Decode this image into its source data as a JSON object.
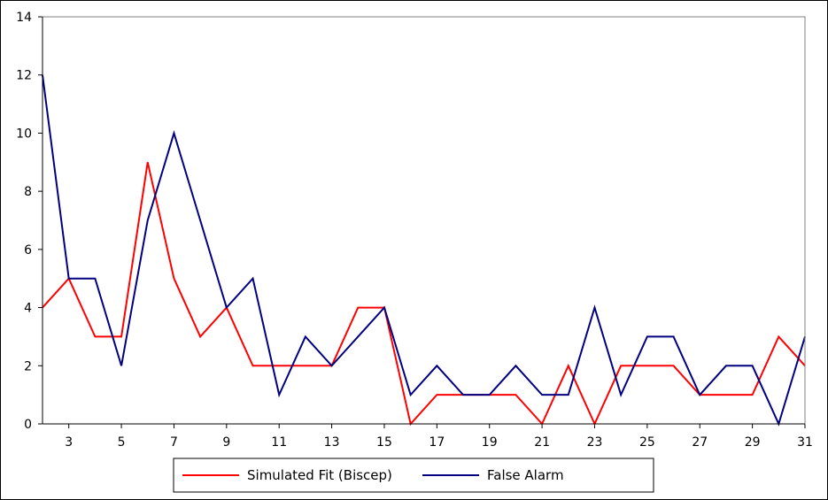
{
  "chart_data": {
    "type": "line",
    "x": [
      2,
      3,
      4,
      5,
      6,
      7,
      8,
      9,
      10,
      11,
      12,
      13,
      14,
      15,
      16,
      17,
      18,
      19,
      20,
      21,
      22,
      23,
      24,
      25,
      26,
      27,
      28,
      29,
      30,
      31
    ],
    "x_tick_labels": [
      "3",
      "5",
      "7",
      "9",
      "11",
      "13",
      "15",
      "17",
      "19",
      "21",
      "23",
      "25",
      "27",
      "29",
      "31"
    ],
    "y_tick_labels": [
      "0",
      "2",
      "4",
      "6",
      "8",
      "10",
      "12",
      "14"
    ],
    "xlim": [
      2,
      31
    ],
    "ylim": [
      0,
      14
    ],
    "grid": false,
    "legend_position": "bottom",
    "series": [
      {
        "name": "Simulated Fit (Biscep)",
        "color": "#ff0000",
        "values": [
          4,
          5,
          3,
          3,
          9,
          5,
          3,
          4,
          2,
          2,
          2,
          2,
          4,
          4,
          0,
          1,
          1,
          1,
          1,
          0,
          2,
          0,
          2,
          2,
          2,
          1,
          1,
          1,
          3,
          2
        ]
      },
      {
        "name": "False Alarm",
        "color": "#000080",
        "values": [
          12,
          5,
          5,
          2,
          7,
          10,
          7,
          4,
          5,
          1,
          3,
          2,
          3,
          4,
          1,
          2,
          1,
          1,
          2,
          1,
          1,
          4,
          1,
          3,
          3,
          1,
          2,
          2,
          0,
          3
        ]
      }
    ]
  }
}
